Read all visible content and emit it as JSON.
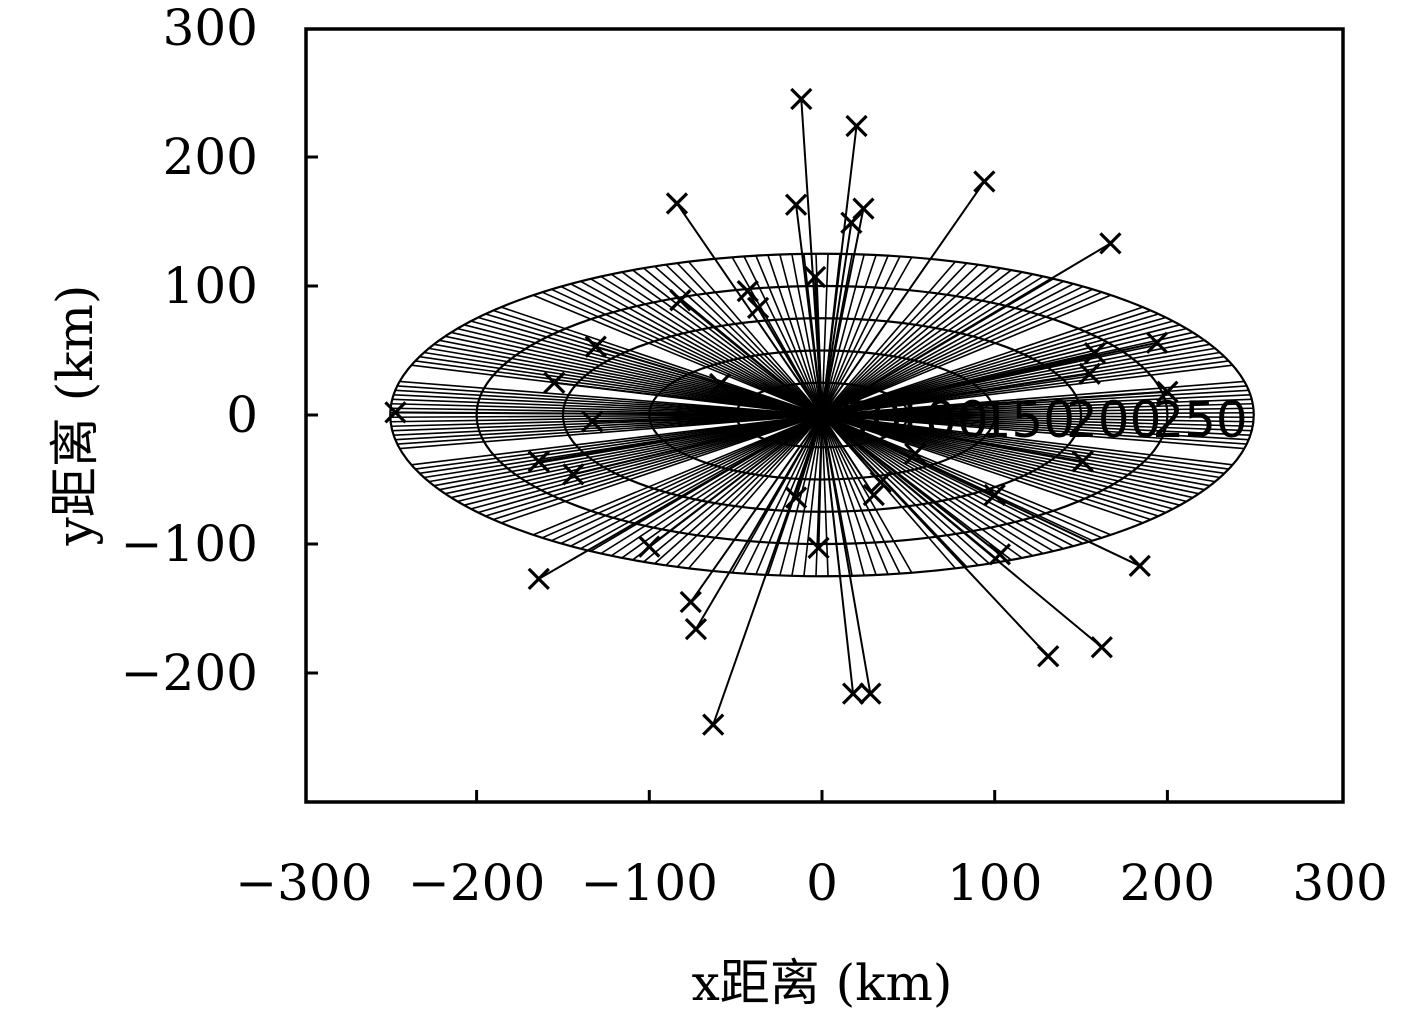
{
  "chart_data": {
    "type": "scatter",
    "xlabel": "x距离 (km)",
    "ylabel": "y距离 (km)",
    "xlim": [
      -300,
      300
    ],
    "ylim": [
      -300,
      300
    ],
    "x_ticks": [
      "−300",
      "−200",
      "−100",
      "0",
      "100",
      "200",
      "300"
    ],
    "y_ticks": [
      "300",
      "200",
      "100",
      "0",
      "−100",
      "−200"
    ],
    "grid": false,
    "polar_grid": {
      "ring_radii": [
        50,
        100,
        150,
        200,
        250
      ],
      "ring_labels": [
        "50",
        "100",
        "150",
        "200",
        "250"
      ],
      "ellipse_y_scale": 0.5,
      "shaded_sector_centers_deg": [
        0,
        30,
        60,
        90,
        120,
        150,
        180,
        210,
        240,
        270,
        300,
        330
      ],
      "sector_half_width_deg": 12,
      "rays_per_sector": 16
    },
    "stations": [
      {
        "x": -247,
        "y": 2
      },
      {
        "x": -164,
        "y": -36
      },
      {
        "x": -164,
        "y": -127
      },
      {
        "x": -155,
        "y": 25
      },
      {
        "x": -144,
        "y": -46
      },
      {
        "x": -133,
        "y": -5
      },
      {
        "x": -131,
        "y": 53
      },
      {
        "x": -100,
        "y": -102
      },
      {
        "x": -84,
        "y": 164
      },
      {
        "x": -82,
        "y": 89
      },
      {
        "x": -76,
        "y": -145
      },
      {
        "x": -73,
        "y": -166
      },
      {
        "x": -63,
        "y": -240
      },
      {
        "x": -59,
        "y": 24
      },
      {
        "x": -43,
        "y": 96
      },
      {
        "x": -37,
        "y": 83
      },
      {
        "x": -15,
        "y": -64
      },
      {
        "x": -15,
        "y": 163
      },
      {
        "x": -12,
        "y": 245
      },
      {
        "x": -4,
        "y": 107
      },
      {
        "x": -2,
        "y": -103
      },
      {
        "x": 17,
        "y": 149
      },
      {
        "x": 18,
        "y": -216
      },
      {
        "x": 20,
        "y": 224
      },
      {
        "x": 24,
        "y": 160
      },
      {
        "x": 28,
        "y": -216
      },
      {
        "x": 30,
        "y": -62
      },
      {
        "x": 34,
        "y": -52
      },
      {
        "x": 54,
        "y": -30
      },
      {
        "x": 94,
        "y": 181
      },
      {
        "x": 100,
        "y": -62
      },
      {
        "x": 103,
        "y": -108
      },
      {
        "x": 131,
        "y": -187
      },
      {
        "x": 151,
        "y": -36
      },
      {
        "x": 155,
        "y": 32
      },
      {
        "x": 158,
        "y": 48
      },
      {
        "x": 162,
        "y": -180
      },
      {
        "x": 167,
        "y": 133
      },
      {
        "x": 184,
        "y": -117
      },
      {
        "x": 194,
        "y": 56
      },
      {
        "x": 200,
        "y": 18
      }
    ]
  }
}
